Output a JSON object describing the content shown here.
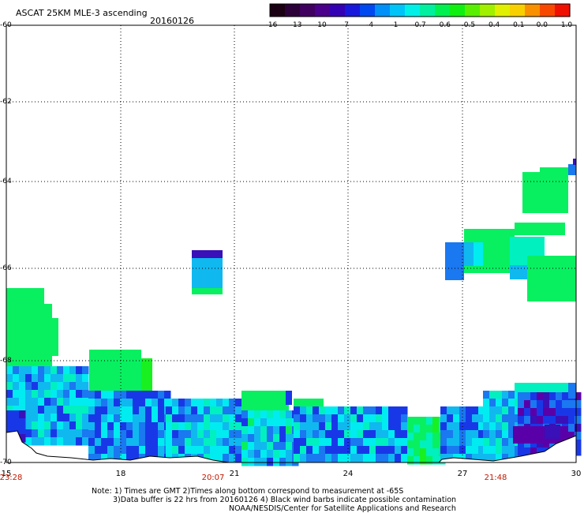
{
  "header": {
    "title": "ASCAT 25KM MLE-3 ascending",
    "date": "20160126"
  },
  "colorbar": {
    "labels": [
      "-16",
      "-13",
      "-10",
      "-7",
      "-4",
      "-1",
      "-0.7",
      "-0.6",
      "-0.5",
      "-0.4",
      "-0.1",
      "0.0",
      "1.0"
    ],
    "colors": [
      "#1a0012",
      "#2c0038",
      "#400060",
      "#4a008a",
      "#3400b4",
      "#1818dc",
      "#0048f0",
      "#0090f8",
      "#00c4f8",
      "#00f0e8",
      "#00f0a0",
      "#00f050",
      "#10f010",
      "#58f000",
      "#a0f000",
      "#e0f000",
      "#f8d000",
      "#f89000",
      "#f84800",
      "#f01000"
    ]
  },
  "axes": {
    "lat_ticks": [
      "-60",
      "-62",
      "-64",
      "-66",
      "-68",
      "-70"
    ],
    "lon_ticks": [
      "15",
      "18",
      "21",
      "24",
      "27",
      "30"
    ],
    "time_labels": [
      "23:28",
      "20:07",
      "21:48"
    ]
  },
  "notes": {
    "line1": "Note: 1) Times are GMT 2)Times along bottom correspond to measurement at -65S",
    "line2": "3)Data buffer is 22 hrs from 20160126 4) Black wind barbs indicate possible contamination",
    "line3": "NOAA/NESDIS/Center for Satellite Applications and Research"
  },
  "map_data": {
    "lon_range": [
      15,
      30
    ],
    "lat_range": [
      -70,
      -60
    ],
    "palette": {
      "purple": "#5a00a8",
      "navy": "#3a10b8",
      "blue": "#1838e8",
      "midblue": "#1a78f0",
      "sky": "#10b8f0",
      "cyan": "#00ecf0",
      "aqua": "#00f0c0",
      "green": "#08f060",
      "lime": "#18f020"
    }
  }
}
